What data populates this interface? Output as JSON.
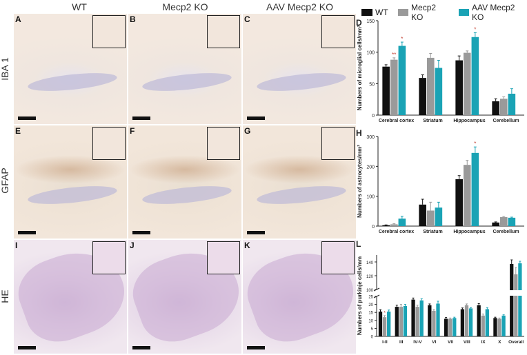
{
  "columns": [
    "WT",
    "Mecp2 KO",
    "AAV Mecp2 KO"
  ],
  "rows": [
    "IBA 1",
    "GFAP",
    "HE"
  ],
  "panel_letters": [
    "A",
    "B",
    "C",
    "D",
    "E",
    "F",
    "G",
    "H",
    "I",
    "J",
    "K",
    "L"
  ],
  "colors": {
    "wt": "#111111",
    "ko": "#9a9a9a",
    "aav": "#1aa3b5"
  },
  "legend": [
    {
      "label": "WT",
      "color": "#111111"
    },
    {
      "label": "Mecp2 KO",
      "color": "#9a9a9a"
    },
    {
      "label": "AAV Mecp2 KO",
      "color": "#1aa3b5"
    }
  ],
  "chart_data": [
    {
      "panel": "D",
      "type": "bar",
      "categories": [
        "Cerebral cortex",
        "Striatum",
        "Hippocampus",
        "Cerebellum"
      ],
      "series": [
        {
          "name": "WT",
          "values": [
            77,
            59,
            87,
            22
          ],
          "errors": [
            3,
            5,
            7,
            4
          ]
        },
        {
          "name": "Mecp2 KO",
          "values": [
            88,
            91,
            99,
            26
          ],
          "errors": [
            3,
            7,
            3,
            3
          ]
        },
        {
          "name": "AAV Mecp2 KO",
          "values": [
            110,
            75,
            124,
            34
          ],
          "errors": [
            6,
            12,
            7,
            8
          ]
        }
      ],
      "ylabel": "Numbers of microglial cells/mm²",
      "ylim": [
        0,
        150
      ],
      "yticks": [
        0,
        50,
        100,
        150
      ],
      "annotations": [
        {
          "category": "Cerebral cortex",
          "series": "Mecp2 KO",
          "text": "**"
        },
        {
          "category": "Cerebral cortex",
          "series": "AAV Mecp2 KO",
          "text": "*"
        },
        {
          "category": "Hippocampus",
          "series": "AAV Mecp2 KO",
          "text": "*"
        }
      ]
    },
    {
      "panel": "H",
      "type": "bar",
      "categories": [
        "Cerebral cortex",
        "Striatum",
        "Hippocampus",
        "Cerebellum"
      ],
      "series": [
        {
          "name": "WT",
          "values": [
            3,
            72,
            157,
            12
          ],
          "errors": [
            1,
            18,
            12,
            2
          ]
        },
        {
          "name": "Mecp2 KO",
          "values": [
            6,
            52,
            205,
            30
          ],
          "errors": [
            2,
            28,
            15,
            2
          ]
        },
        {
          "name": "AAV Mecp2 KO",
          "values": [
            25,
            62,
            245,
            28
          ],
          "errors": [
            8,
            18,
            20,
            2
          ]
        }
      ],
      "ylabel": "Numbers of astrocytes/mm²",
      "ylim": [
        0,
        300
      ],
      "yticks": [
        0,
        100,
        200,
        300
      ],
      "annotations": [
        {
          "category": "Hippocampus",
          "series": "AAV Mecp2 KO",
          "text": "*"
        }
      ]
    },
    {
      "panel": "L",
      "type": "bar",
      "categories": [
        "I-II",
        "III",
        "IV-V",
        "VI",
        "VII",
        "VIII",
        "IX",
        "X",
        "Overall"
      ],
      "series": [
        {
          "name": "WT",
          "values": [
            15.5,
            18.5,
            23,
            19.5,
            11,
            17,
            19.5,
            11.5,
            137
          ],
          "errors": [
            1.2,
            1,
            1,
            0.8,
            0.8,
            0.8,
            1,
            0.5,
            6
          ]
        },
        {
          "name": "Mecp2 KO",
          "values": [
            12,
            18.5,
            18.5,
            16,
            11,
            19.5,
            13,
            11,
            122
          ],
          "errors": [
            1,
            1.5,
            1,
            0.8,
            0.5,
            0.8,
            1,
            0.5,
            10
          ]
        },
        {
          "name": "AAV Mecp2 KO",
          "values": [
            15.5,
            19,
            22.5,
            20.5,
            11.5,
            17.5,
            17,
            13,
            138
          ],
          "errors": [
            1,
            1,
            1,
            1.5,
            0.5,
            0.5,
            1,
            0.5,
            3
          ]
        }
      ],
      "ylabel": "Numbers of purkinje cells/mm",
      "yaxis_break": true,
      "lower_yticks": [
        0,
        5,
        10,
        15,
        20,
        25
      ],
      "upper_yticks": [
        100,
        120,
        140
      ],
      "annotations": [
        {
          "category": "I-II",
          "series": "Mecp2 KO",
          "text": "*"
        }
      ]
    }
  ]
}
